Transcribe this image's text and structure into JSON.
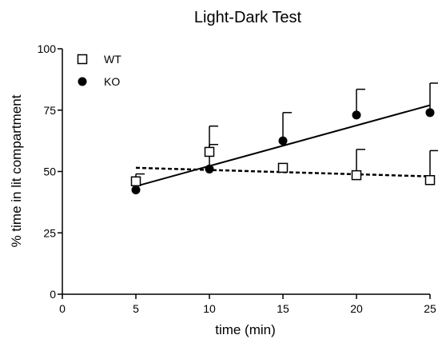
{
  "chart_data": {
    "type": "scatter",
    "title": "Light-Dark Test",
    "xlabel": "time (min)",
    "ylabel": "% time in lit compartment",
    "xlim": [
      0,
      25
    ],
    "ylim": [
      0,
      100
    ],
    "x_ticks": [
      0,
      5,
      10,
      15,
      20,
      25
    ],
    "y_ticks": [
      0,
      25,
      50,
      75,
      100
    ],
    "grid": false,
    "legend_position": "top-left",
    "series": [
      {
        "name": "WT",
        "marker": "open-square",
        "color": "#000000",
        "x": [
          5,
          10,
          15,
          20,
          25
        ],
        "y": [
          46,
          58,
          51.5,
          48.5,
          46.5
        ],
        "error_upper": [
          3,
          3,
          0,
          10.5,
          12
        ],
        "fit_line": {
          "style": "dashed",
          "x": [
            5,
            25
          ],
          "y": [
            51.5,
            48
          ]
        }
      },
      {
        "name": "KO",
        "marker": "filled-circle",
        "color": "#000000",
        "x": [
          5,
          10,
          15,
          20,
          25
        ],
        "y": [
          42.5,
          51,
          62.5,
          73,
          74
        ],
        "error_upper": [
          0,
          17.5,
          11.5,
          10.5,
          12
        ],
        "fit_line": {
          "style": "solid",
          "x": [
            5,
            25
          ],
          "y": [
            44,
            77
          ]
        }
      }
    ]
  }
}
